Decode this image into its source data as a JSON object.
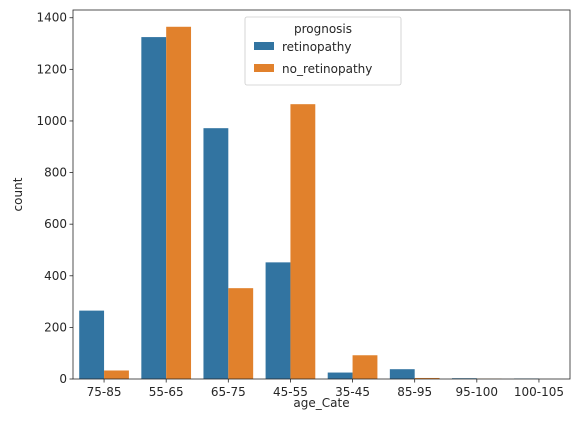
{
  "chart_data": {
    "type": "bar",
    "title": "",
    "xlabel": "age_Cate",
    "ylabel": "count",
    "ylim": [
      0,
      1430
    ],
    "yticks": [
      0,
      200,
      400,
      600,
      800,
      1000,
      1200,
      1400
    ],
    "grid": false,
    "legend": {
      "title": "prognosis",
      "placement": "upper-center"
    },
    "categories": [
      "75-85",
      "55-65",
      "65-75",
      "45-55",
      "35-45",
      "85-95",
      "95-100",
      "100-105"
    ],
    "series": [
      {
        "name": "retinopathy",
        "color": "#3274a1",
        "values": [
          265,
          1325,
          972,
          452,
          25,
          38,
          3,
          2
        ]
      },
      {
        "name": "no_retinopathy",
        "color": "#e1812c",
        "values": [
          33,
          1365,
          352,
          1065,
          92,
          4,
          1,
          0
        ]
      }
    ]
  }
}
